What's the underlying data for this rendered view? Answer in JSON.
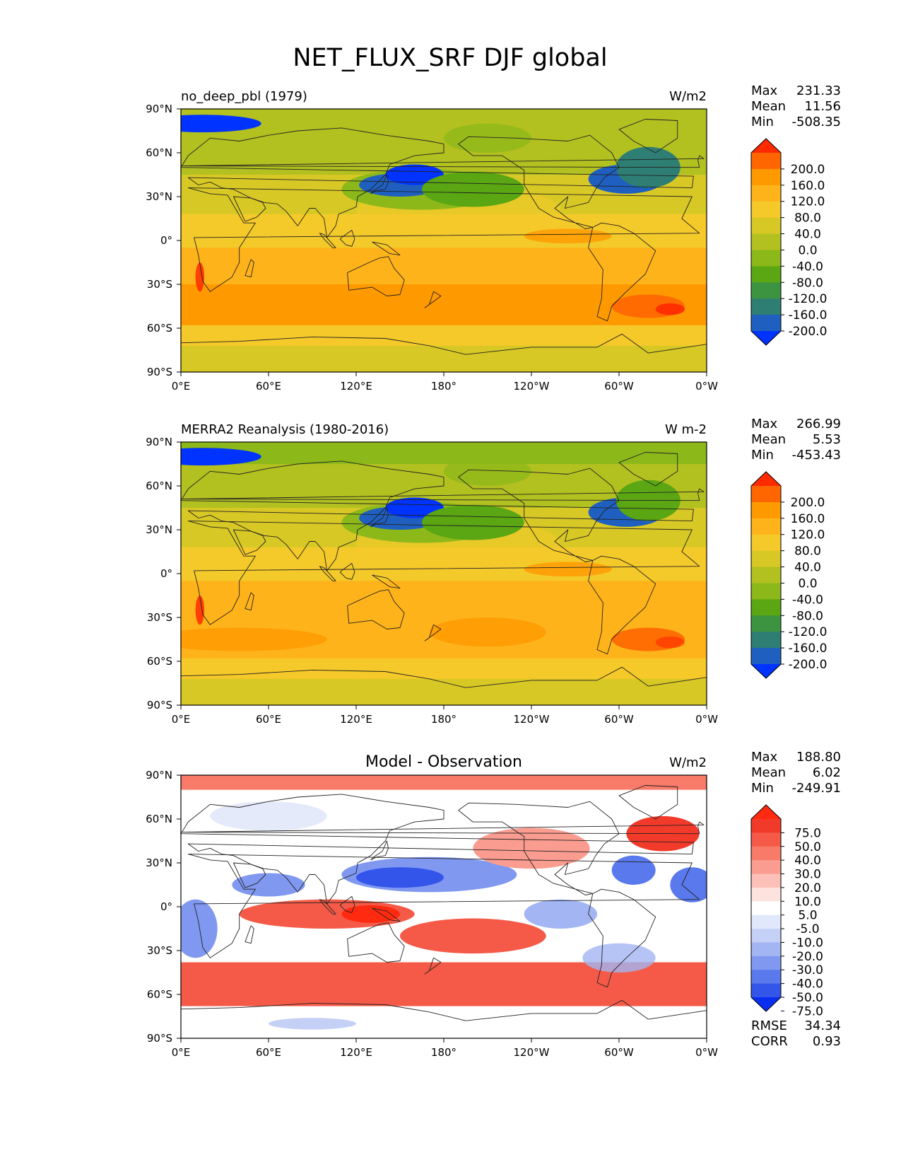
{
  "figure": {
    "title": "NET_FLUX_SRF DJF global"
  },
  "chart_data": [
    {
      "type": "heatmap",
      "panel": "test",
      "title_left": "no_deep_pbl (1979)",
      "title_center": "",
      "units": "W/m2",
      "x_ticks": [
        "0°E",
        "60°E",
        "120°E",
        "180°",
        "120°W",
        "60°W",
        "0°W"
      ],
      "y_ticks": [
        "90°N",
        "60°N",
        "30°N",
        "0°",
        "30°S",
        "60°S",
        "90°S"
      ],
      "xlim": [
        0,
        360
      ],
      "ylim": [
        -90,
        90
      ],
      "stats": [
        {
          "label": "Max",
          "value": "231.33"
        },
        {
          "label": "Mean",
          "value": "11.56"
        },
        {
          "label": "Min",
          "value": "-508.35"
        }
      ],
      "colorbar": {
        "labels": [
          "200.0",
          "160.0",
          "120.0",
          "80.0",
          "40.0",
          "0.0",
          "-40.0",
          "-80.0",
          "-120.0",
          "-160.0",
          "-200.0"
        ],
        "colors": [
          "#ff2a00",
          "#ff6600",
          "#ff9900",
          "#ffb31a",
          "#f5c92a",
          "#d8c825",
          "#b2c020",
          "#8cb81a",
          "#5aa613",
          "#3d9440",
          "#2e7e74",
          "#1f5fc0",
          "#0033ff"
        ]
      }
    },
    {
      "type": "heatmap",
      "panel": "reference",
      "title_left": "MERRA2 Reanalysis (1980-2016)",
      "title_center": "",
      "units": "W m-2",
      "x_ticks": [
        "0°E",
        "60°E",
        "120°E",
        "180°",
        "120°W",
        "60°W",
        "0°W"
      ],
      "y_ticks": [
        "90°N",
        "60°N",
        "30°N",
        "0°",
        "30°S",
        "60°S",
        "90°S"
      ],
      "xlim": [
        0,
        360
      ],
      "ylim": [
        -90,
        90
      ],
      "stats": [
        {
          "label": "Max",
          "value": "266.99"
        },
        {
          "label": "Mean",
          "value": "5.53"
        },
        {
          "label": "Min",
          "value": "-453.43"
        }
      ],
      "colorbar": {
        "labels": [
          "200.0",
          "160.0",
          "120.0",
          "80.0",
          "40.0",
          "0.0",
          "-40.0",
          "-80.0",
          "-120.0",
          "-160.0",
          "-200.0"
        ],
        "colors": [
          "#ff2a00",
          "#ff6600",
          "#ff9900",
          "#ffb31a",
          "#f5c92a",
          "#d8c825",
          "#b2c020",
          "#8cb81a",
          "#5aa613",
          "#3d9440",
          "#2e7e74",
          "#1f5fc0",
          "#0033ff"
        ]
      }
    },
    {
      "type": "heatmap",
      "panel": "difference",
      "title_left": "",
      "title_center": "Model - Observation",
      "units": "W/m2",
      "x_ticks": [
        "0°E",
        "60°E",
        "120°E",
        "180°",
        "120°W",
        "60°W",
        "0°W"
      ],
      "y_ticks": [
        "90°N",
        "60°N",
        "30°N",
        "0°",
        "30°S",
        "60°S",
        "90°S"
      ],
      "xlim": [
        0,
        360
      ],
      "ylim": [
        -90,
        90
      ],
      "stats": [
        {
          "label": "Max",
          "value": "188.80"
        },
        {
          "label": "Mean",
          "value": "6.02"
        },
        {
          "label": "Min",
          "value": "-249.91"
        }
      ],
      "extra_stats": [
        {
          "label": "RMSE",
          "value": "34.34"
        },
        {
          "label": "CORR",
          "value": "0.93"
        }
      ],
      "colorbar": {
        "labels": [
          "75.0",
          "50.0",
          "40.0",
          "30.0",
          "20.0",
          "10.0",
          "5.0",
          "-5.0",
          "-10.0",
          "-20.0",
          "-30.0",
          "-40.0",
          "-50.0",
          "-75.0"
        ],
        "colors": [
          "#ff2a10",
          "#f23a2a",
          "#f55a48",
          "#f87a68",
          "#fa9d90",
          "#fcc0b8",
          "#fde3de",
          "#ffffff",
          "#e2e8fb",
          "#c5d0f7",
          "#a3b5f3",
          "#8098f0",
          "#5a79ec",
          "#3355ea",
          "#0a2ef0"
        ]
      }
    }
  ]
}
